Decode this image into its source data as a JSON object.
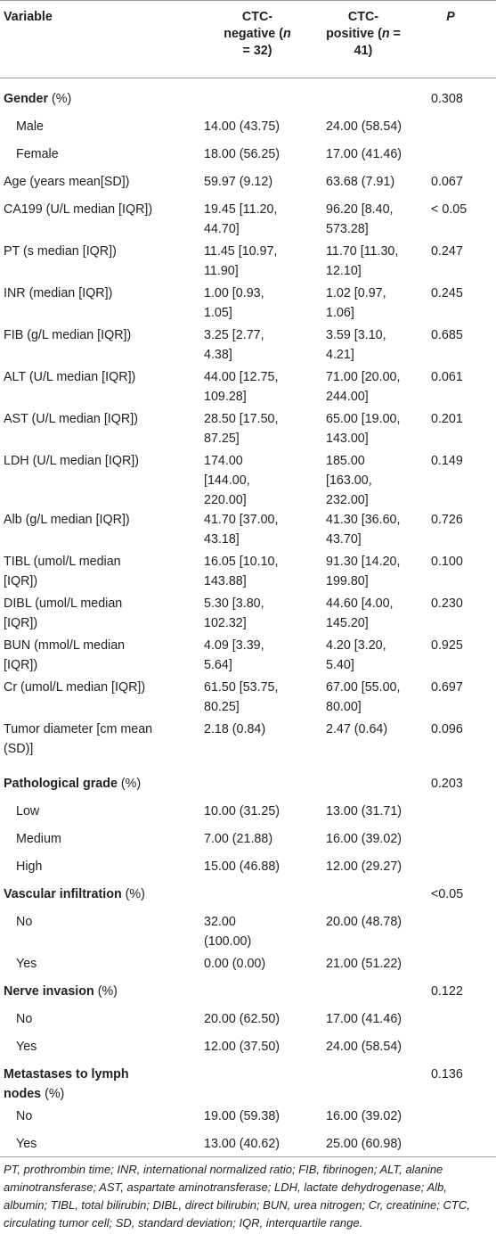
{
  "header": {
    "variable": "Variable",
    "neg_line1": "CTC-",
    "neg_line2a": "negative (",
    "neg_line2b": "n",
    "neg_line3": "= 32)",
    "pos_line1": "CTC-",
    "pos_line2a": "positive (",
    "pos_line2b": "n",
    "pos_line2c": " =",
    "pos_line3": "41)",
    "p": "P"
  },
  "rows": [
    {
      "var": [
        "Gender"
      ],
      "suffix": " (%)",
      "bold": true,
      "neg": [],
      "pos": [],
      "p": "0.308"
    },
    {
      "var": [
        "Male"
      ],
      "sub": true,
      "neg": [
        "14.00 (43.75)"
      ],
      "pos": [
        "24.00 (58.54)"
      ],
      "p": ""
    },
    {
      "var": [
        "Female"
      ],
      "sub": true,
      "neg": [
        "18.00 (56.25)"
      ],
      "pos": [
        "17.00 (41.46)"
      ],
      "p": ""
    },
    {
      "var": [
        "Age (years mean[SD])"
      ],
      "neg": [
        "59.97 (9.12)"
      ],
      "pos": [
        "63.68 (7.91)"
      ],
      "p": "0.067"
    },
    {
      "var": [
        "CA199 (U/L median [IQR])"
      ],
      "neg": [
        "19.45 [11.20,",
        "44.70]"
      ],
      "pos": [
        "96.20 [8.40,",
        "573.28]"
      ],
      "p": "< 0.05"
    },
    {
      "var": [
        "PT (s median [IQR])"
      ],
      "neg": [
        "11.45 [10.97,",
        "11.90]"
      ],
      "pos": [
        "11.70 [11.30,",
        "12.10]"
      ],
      "p": "0.247"
    },
    {
      "var": [
        "INR (median [IQR])"
      ],
      "neg": [
        "1.00 [0.93,",
        "1.05]"
      ],
      "pos": [
        "1.02 [0.97,",
        "1.06]"
      ],
      "p": "0.245"
    },
    {
      "var": [
        "FIB (g/L median [IQR])"
      ],
      "neg": [
        "3.25 [2.77,",
        "4.38]"
      ],
      "pos": [
        "3.59 [3.10,",
        "4.21]"
      ],
      "p": "0.685"
    },
    {
      "var": [
        "ALT (U/L median [IQR])"
      ],
      "neg": [
        "44.00 [12.75,",
        "109.28]"
      ],
      "pos": [
        "71.00 [20.00,",
        "244.00]"
      ],
      "p": "0.061"
    },
    {
      "var": [
        "AST (U/L median [IQR])"
      ],
      "neg": [
        "28.50 [17.50,",
        "87.25]"
      ],
      "pos": [
        "65.00 [19.00,",
        "143.00]"
      ],
      "p": "0.201"
    },
    {
      "var": [
        "LDH (U/L median [IQR])"
      ],
      "neg": [
        "174.00",
        "[144.00,",
        "220.00]"
      ],
      "pos": [
        "185.00",
        "[163.00,",
        "232.00]"
      ],
      "p": "0.149"
    },
    {
      "var": [
        "Alb (g/L median [IQR])"
      ],
      "neg": [
        "41.70 [37.00,",
        "43.18]"
      ],
      "pos": [
        "41.30 [36.60,",
        "43.70]"
      ],
      "p": "0.726"
    },
    {
      "var": [
        "TIBL (umol/L median",
        "[IQR])"
      ],
      "neg": [
        "16.05 [10.10,",
        "143.88]"
      ],
      "pos": [
        "91.30 [14.20,",
        "199.80]"
      ],
      "p": "0.100"
    },
    {
      "var": [
        "DIBL (umol/L median",
        "[IQR])"
      ],
      "neg": [
        "5.30 [3.80,",
        "102.32]"
      ],
      "pos": [
        "44.60 [4.00,",
        "145.20]"
      ],
      "p": "0.230"
    },
    {
      "var": [
        "BUN (mmol/L median",
        "[IQR])"
      ],
      "neg": [
        "4.09 [3.39,",
        "5.64]"
      ],
      "pos": [
        "4.20 [3.20,",
        "5.40]"
      ],
      "p": "0.925"
    },
    {
      "var": [
        "Cr (umol/L median [IQR])"
      ],
      "neg": [
        "61.50 [53.75,",
        "80.25]"
      ],
      "pos": [
        "67.00 [55.00,",
        "80.00]"
      ],
      "p": "0.697"
    },
    {
      "var": [
        "Tumor diameter [cm mean",
        "(SD)]"
      ],
      "neg": [
        "2.18 (0.84)"
      ],
      "pos": [
        "2.47 (0.64)"
      ],
      "p": "0.096"
    },
    {
      "var": [
        "Pathological grade"
      ],
      "suffix": " (%)",
      "bold": true,
      "neg": [],
      "pos": [],
      "p": "0.203"
    },
    {
      "var": [
        "Low"
      ],
      "sub": true,
      "neg": [
        "10.00 (31.25)"
      ],
      "pos": [
        "13.00 (31.71)"
      ],
      "p": ""
    },
    {
      "var": [
        "Medium"
      ],
      "sub": true,
      "neg": [
        "7.00 (21.88)"
      ],
      "pos": [
        "16.00 (39.02)"
      ],
      "p": ""
    },
    {
      "var": [
        "High"
      ],
      "sub": true,
      "neg": [
        "15.00 (46.88)"
      ],
      "pos": [
        "12.00 (29.27)"
      ],
      "p": ""
    },
    {
      "var": [
        "Vascular infiltration"
      ],
      "suffix": " (%)",
      "bold": true,
      "neg": [],
      "pos": [],
      "p": "<0.05"
    },
    {
      "var": [
        "No"
      ],
      "sub": true,
      "neg": [
        "32.00",
        "(100.00)"
      ],
      "pos": [
        "20.00 (48.78)"
      ],
      "p": ""
    },
    {
      "var": [
        "Yes"
      ],
      "sub": true,
      "neg": [
        "0.00 (0.00)"
      ],
      "pos": [
        "21.00 (51.22)"
      ],
      "p": ""
    },
    {
      "var": [
        "Nerve invasion"
      ],
      "suffix": " (%)",
      "bold": true,
      "neg": [],
      "pos": [],
      "p": "0.122"
    },
    {
      "var": [
        "No"
      ],
      "sub": true,
      "neg": [
        "20.00 (62.50)"
      ],
      "pos": [
        "17.00 (41.46)"
      ],
      "p": ""
    },
    {
      "var": [
        "Yes"
      ],
      "sub": true,
      "neg": [
        "12.00 (37.50)"
      ],
      "pos": [
        "24.00 (58.54)"
      ],
      "p": ""
    },
    {
      "var": [
        "Metastases to lymph",
        "nodes"
      ],
      "suffix": " (%)",
      "bold": true,
      "neg": [],
      "pos": [],
      "p": "0.136"
    },
    {
      "var": [
        "No"
      ],
      "sub": true,
      "neg": [
        "19.00 (59.38)"
      ],
      "pos": [
        "16.00 (39.02)"
      ],
      "p": ""
    },
    {
      "var": [
        "Yes"
      ],
      "sub": true,
      "neg": [
        "13.00 (40.62)"
      ],
      "pos": [
        "25.00 (60.98)"
      ],
      "p": ""
    }
  ],
  "footnote": "PT, prothrombin time; INR, international normalized ratio; FIB, fibrinogen; ALT, alanine aminotransferase; AST, aspartate aminotransferase; LDH, lactate dehydrogenase; Alb, albumin; TIBL, total bilirubin; DIBL, direct bilirubin; BUN, urea nitrogen; Cr, creatinine; CTC, circulating tumor cell; SD, standard deviation; IQR, interquartile range."
}
